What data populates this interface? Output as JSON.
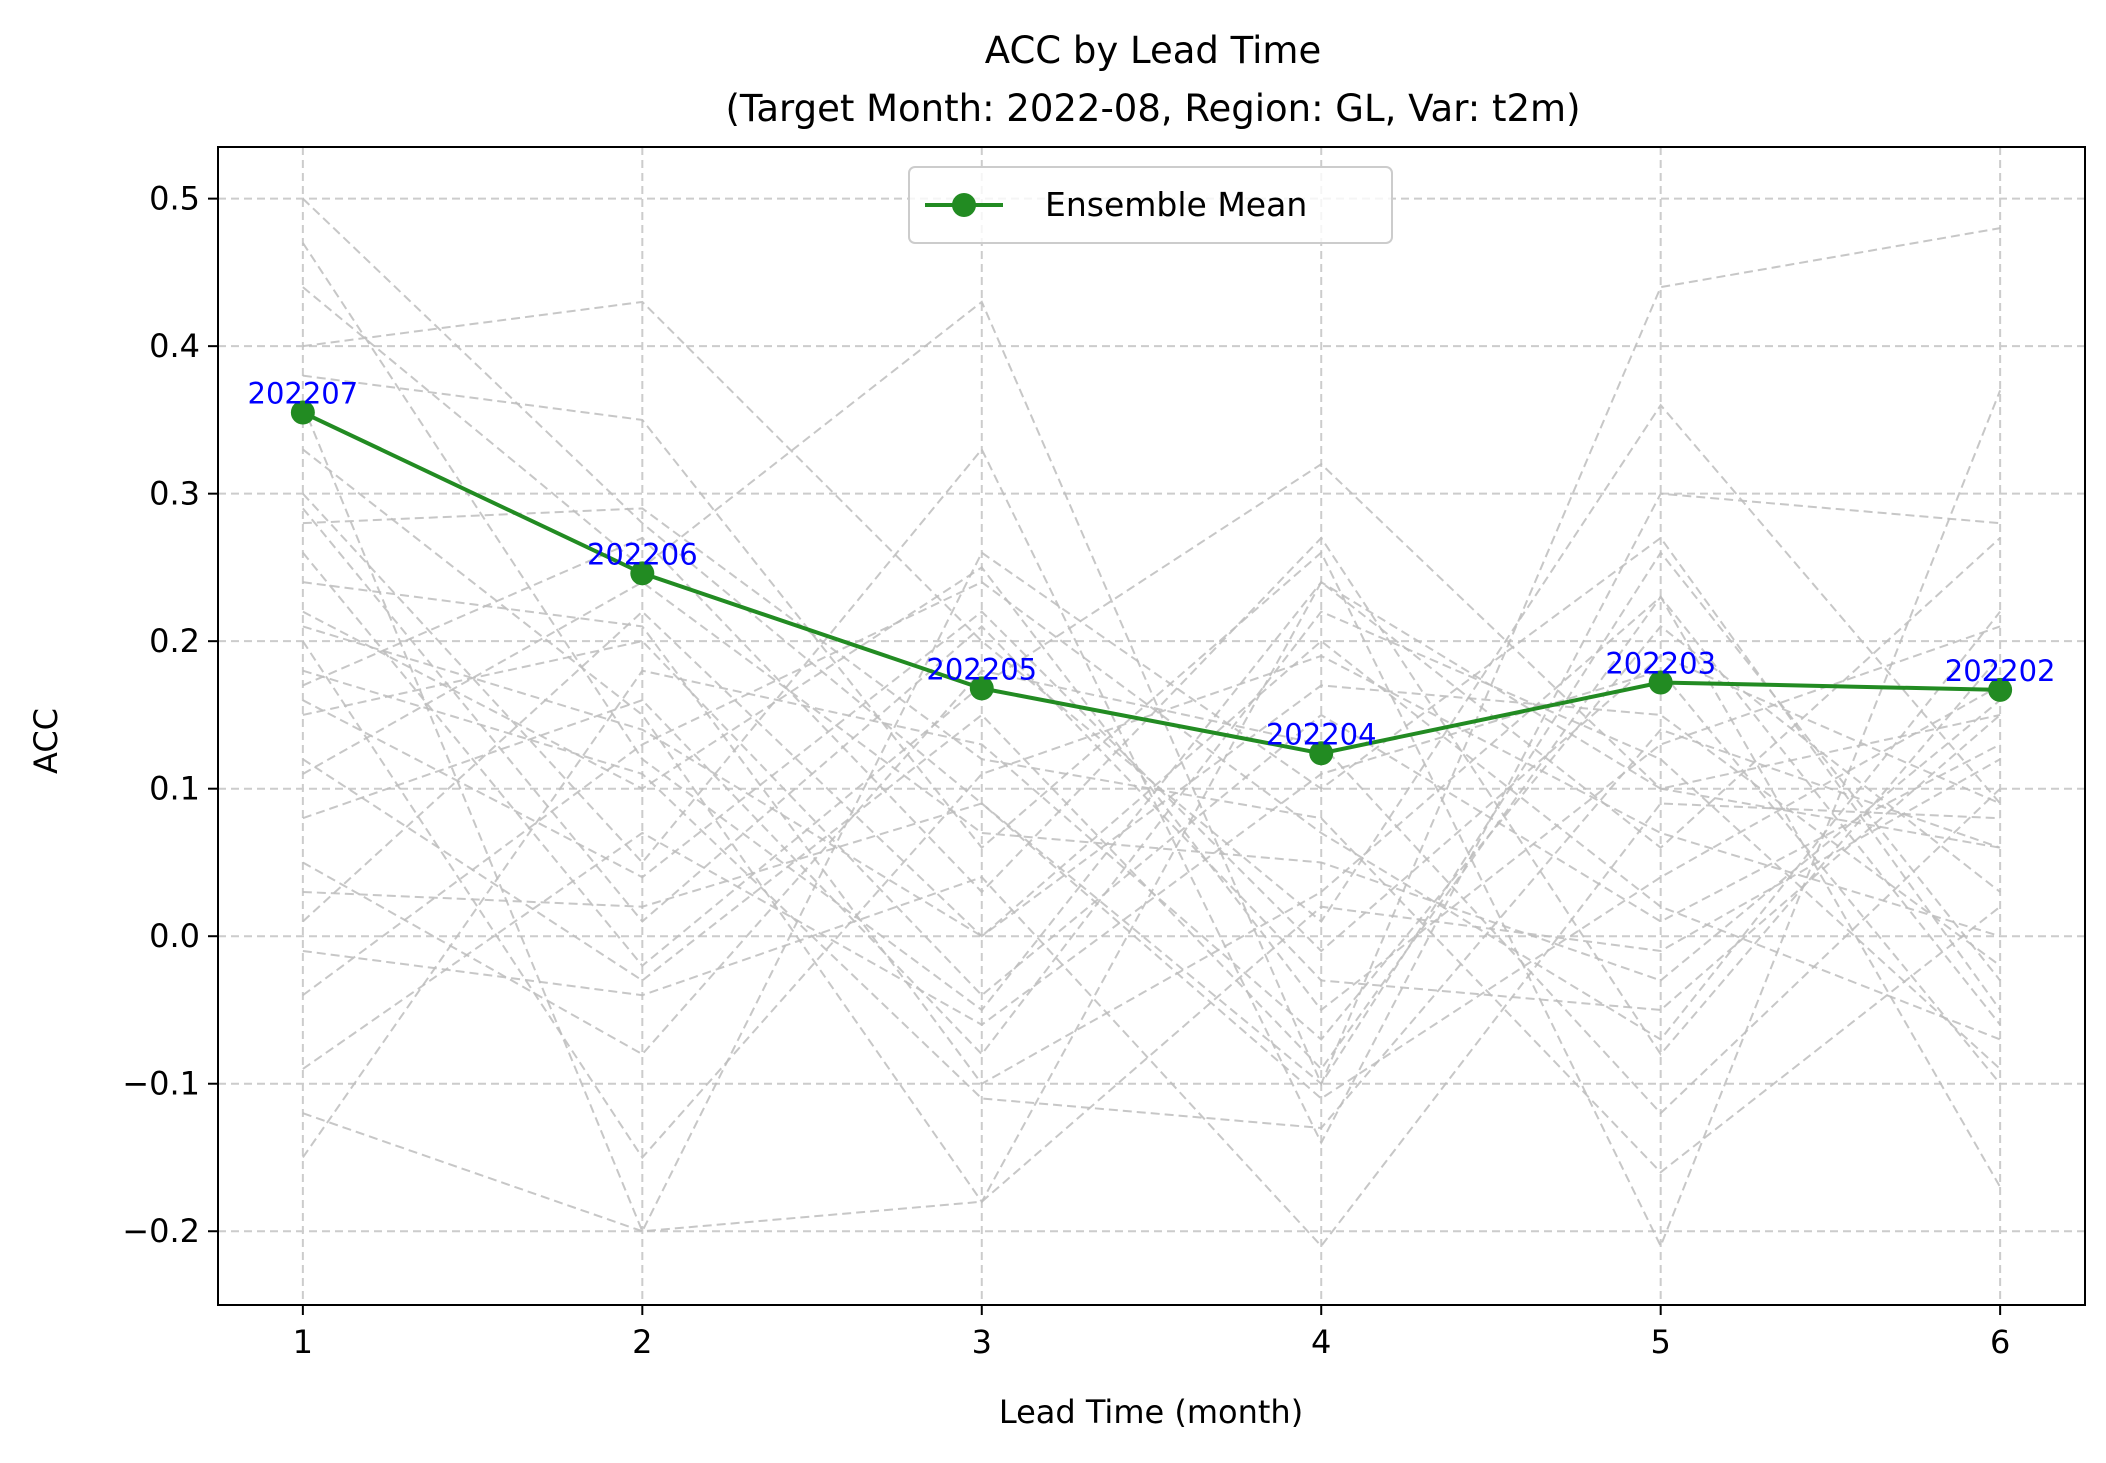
{
  "chart_data": {
    "type": "line",
    "title": "ACC by Lead Time",
    "subtitle": "(Target Month: 2022-08, Region: GL, Var: t2m)",
    "xlabel": "Lead Time (month)",
    "ylabel": "ACC",
    "x": [
      1,
      2,
      3,
      4,
      5,
      6
    ],
    "xlim": [
      0.75,
      6.25
    ],
    "ylim": [
      -0.25,
      0.535
    ],
    "xticks": [
      1,
      2,
      3,
      4,
      5,
      6
    ],
    "xtick_labels": [
      "1",
      "2",
      "3",
      "4",
      "5",
      "6"
    ],
    "yticks": [
      -0.2,
      -0.1,
      0.0,
      0.1,
      0.2,
      0.3,
      0.4,
      0.5
    ],
    "ytick_labels": [
      "−0.2",
      "−0.1",
      "0.0",
      "0.1",
      "0.2",
      "0.3",
      "0.4",
      "0.5"
    ],
    "grid": true,
    "legend_position": "top-center",
    "legend": [
      "Ensemble Mean"
    ],
    "series": [
      {
        "name": "Ensemble Mean",
        "values": [
          0.355,
          0.246,
          0.168,
          0.124,
          0.172,
          0.167
        ],
        "color": "#228B22",
        "marker": "circle",
        "point_labels": [
          "202207",
          "202206",
          "202205",
          "202204",
          "202203",
          "202202"
        ]
      }
    ],
    "member_lines": {
      "color": "#bdbdbd",
      "style": "dashed",
      "values": [
        [
          0.5,
          0.28,
          0.09,
          -0.1,
          0.26,
          -0.03
        ],
        [
          0.47,
          0.12,
          -0.05,
          0.24,
          0.1,
          0.15
        ],
        [
          0.44,
          0.25,
          0.43,
          -0.1,
          0.44,
          0.48
        ],
        [
          0.4,
          0.43,
          0.2,
          0.01,
          0.36,
          0.09
        ],
        [
          0.38,
          0.35,
          0.06,
          0.26,
          -0.21,
          0.37
        ],
        [
          0.36,
          -0.2,
          0.26,
          0.1,
          0.27,
          -0.05
        ],
        [
          0.33,
          0.15,
          -0.18,
          0.24,
          0.06,
          0.27
        ],
        [
          0.3,
          0.05,
          0.33,
          -0.14,
          0.3,
          0.28
        ],
        [
          0.28,
          0.29,
          0.12,
          0.08,
          -0.16,
          0.02
        ],
        [
          0.26,
          -0.02,
          0.17,
          0.32,
          0.1,
          0.06
        ],
        [
          0.24,
          0.21,
          -0.1,
          0.03,
          0.23,
          -0.17
        ],
        [
          0.22,
          0.1,
          0.25,
          -0.05,
          0.13,
          0.21
        ],
        [
          0.2,
          -0.15,
          0.11,
          0.19,
          0.07,
          0.0
        ],
        [
          0.17,
          0.27,
          0.03,
          0.27,
          -0.08,
          0.19
        ],
        [
          0.16,
          0.04,
          0.22,
          -0.01,
          0.19,
          0.09
        ],
        [
          0.15,
          0.2,
          -0.04,
          0.15,
          0.01,
          0.13
        ],
        [
          0.12,
          -0.03,
          0.15,
          -0.09,
          0.23,
          -0.06
        ],
        [
          0.11,
          0.24,
          0.07,
          0.05,
          -0.03,
          0.16
        ],
        [
          0.08,
          0.16,
          -0.08,
          0.22,
          0.12,
          -0.09
        ],
        [
          0.05,
          -0.08,
          0.18,
          0.13,
          -0.12,
          0.1
        ],
        [
          0.03,
          0.02,
          0.09,
          -0.11,
          0.04,
          0.17
        ],
        [
          0.01,
          0.22,
          0.0,
          0.17,
          0.15,
          -0.02
        ],
        [
          -0.01,
          -0.04,
          0.04,
          -0.21,
          0.09,
          0.08
        ],
        [
          -0.04,
          0.13,
          0.24,
          0.07,
          -0.07,
          0.22
        ],
        [
          -0.09,
          0.07,
          -0.06,
          0.11,
          0.18,
          -0.1
        ],
        [
          -0.12,
          -0.2,
          -0.18,
          0.02,
          -0.01,
          0.12
        ],
        [
          -0.15,
          0.18,
          0.13,
          -0.07,
          0.21,
          0.03
        ],
        [
          0.29,
          0.01,
          0.21,
          -0.03,
          -0.05,
          0.15
        ],
        [
          0.21,
          0.14,
          0.0,
          0.2,
          0.02,
          -0.07
        ],
        [
          0.18,
          0.11,
          -0.11,
          -0.13,
          0.14,
          0.06
        ]
      ]
    }
  }
}
